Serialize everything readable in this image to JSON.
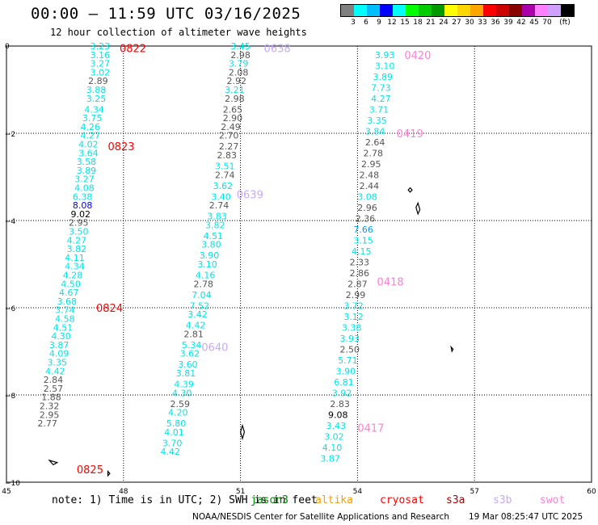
{
  "header": {
    "title": "00:00 – 11:59 UTC 03/16/2025",
    "subtitle": "12 hour collection of altimeter wave heights"
  },
  "legend": {
    "colors": [
      "#808080",
      "#00ffff",
      "#00bfff",
      "#0000ff",
      "#00ffff",
      "#00ff00",
      "#00cc00",
      "#009900",
      "#ffff00",
      "#ffd700",
      "#ffa500",
      "#ff0000",
      "#cc0000",
      "#880000",
      "#aa00aa",
      "#ff80ff",
      "#d0a0ff",
      "#000000"
    ],
    "ticks": [
      "3",
      "6",
      "9",
      "12",
      "15",
      "18",
      "21",
      "24",
      "27",
      "30",
      "33",
      "36",
      "39",
      "42",
      "45",
      "70",
      "(ft)"
    ]
  },
  "axes": {
    "x_ticks": [
      "45",
      "48",
      "51",
      "54",
      "57",
      "60"
    ],
    "y_ticks": [
      "0",
      "−2",
      "−4",
      "−6",
      "−8",
      "−10"
    ]
  },
  "tracks": [
    {
      "time_labels": [
        {
          "text": "0822",
          "lon": 47.9,
          "lat": -0.05,
          "color": "#ff0000"
        },
        {
          "text": "0823",
          "lon": 47.6,
          "lat": -2.3,
          "color": "#ff0000"
        },
        {
          "text": "0824",
          "lon": 47.3,
          "lat": -6.0,
          "color": "#ff0000"
        },
        {
          "text": "0825",
          "lon": 46.8,
          "lat": -9.7,
          "color": "#ff0000"
        }
      ],
      "points": [
        {
          "v": "3.23",
          "lon": 47.4,
          "lat": 0.0,
          "c": "#00e5e5"
        },
        {
          "v": "3.16",
          "lon": 47.4,
          "lat": -0.2,
          "c": "#00e5e5"
        },
        {
          "v": "3.27",
          "lon": 47.4,
          "lat": -0.4,
          "c": "#00e5e5"
        },
        {
          "v": "3.02",
          "lon": 47.4,
          "lat": -0.6,
          "c": "#00e5e5"
        },
        {
          "v": "2.89",
          "lon": 47.35,
          "lat": -0.8,
          "c": "#555555"
        },
        {
          "v": "3.88",
          "lon": 47.3,
          "lat": -1.0,
          "c": "#00e5e5"
        },
        {
          "v": "3.25",
          "lon": 47.3,
          "lat": -1.2,
          "c": "#00e5e5"
        },
        {
          "v": "4.34",
          "lon": 47.25,
          "lat": -1.45,
          "c": "#00e5e5"
        },
        {
          "v": "3.75",
          "lon": 47.2,
          "lat": -1.65,
          "c": "#00e5e5"
        },
        {
          "v": "4.26",
          "lon": 47.15,
          "lat": -1.85,
          "c": "#00e5e5"
        },
        {
          "v": "4.27",
          "lon": 47.15,
          "lat": -2.05,
          "c": "#00e5e5"
        },
        {
          "v": "4.02",
          "lon": 47.1,
          "lat": -2.25,
          "c": "#00e5e5"
        },
        {
          "v": "3.64",
          "lon": 47.1,
          "lat": -2.45,
          "c": "#00e5e5"
        },
        {
          "v": "3.58",
          "lon": 47.05,
          "lat": -2.65,
          "c": "#00e5e5"
        },
        {
          "v": "3.89",
          "lon": 47.05,
          "lat": -2.85,
          "c": "#00e5e5"
        },
        {
          "v": "3.27",
          "lon": 47.0,
          "lat": -3.05,
          "c": "#00e5e5"
        },
        {
          "v": "4.08",
          "lon": 47.0,
          "lat": -3.25,
          "c": "#00e5e5"
        },
        {
          "v": "6.38",
          "lon": 46.95,
          "lat": -3.45,
          "c": "#00e5e5"
        },
        {
          "v": "8.08",
          "lon": 46.95,
          "lat": -3.65,
          "c": "#0000ff"
        },
        {
          "v": "9.02",
          "lon": 46.9,
          "lat": -3.85,
          "c": "#000000"
        },
        {
          "v": "2.95",
          "lon": 46.85,
          "lat": -4.05,
          "c": "#555555"
        },
        {
          "v": "3.50",
          "lon": 46.85,
          "lat": -4.25,
          "c": "#00e5e5"
        },
        {
          "v": "4.27",
          "lon": 46.8,
          "lat": -4.45,
          "c": "#00e5e5"
        },
        {
          "v": "3.82",
          "lon": 46.8,
          "lat": -4.65,
          "c": "#00e5e5"
        },
        {
          "v": "4.11",
          "lon": 46.75,
          "lat": -4.85,
          "c": "#00e5e5"
        },
        {
          "v": "4.34",
          "lon": 46.75,
          "lat": -5.05,
          "c": "#00e5e5"
        },
        {
          "v": "4.28",
          "lon": 46.7,
          "lat": -5.25,
          "c": "#00e5e5"
        },
        {
          "v": "4.50",
          "lon": 46.65,
          "lat": -5.45,
          "c": "#00e5e5"
        },
        {
          "v": "4.67",
          "lon": 46.6,
          "lat": -5.65,
          "c": "#00e5e5"
        },
        {
          "v": "3.68",
          "lon": 46.55,
          "lat": -5.85,
          "c": "#00e5e5"
        },
        {
          "v": "3.74",
          "lon": 46.5,
          "lat": -6.05,
          "c": "#00e5e5"
        },
        {
          "v": "4.58",
          "lon": 46.5,
          "lat": -6.25,
          "c": "#00e5e5"
        },
        {
          "v": "4.51",
          "lon": 46.45,
          "lat": -6.45,
          "c": "#00e5e5"
        },
        {
          "v": "4.30",
          "lon": 46.4,
          "lat": -6.65,
          "c": "#00e5e5"
        },
        {
          "v": "3.87",
          "lon": 46.35,
          "lat": -6.85,
          "c": "#00e5e5"
        },
        {
          "v": "4.09",
          "lon": 46.35,
          "lat": -7.05,
          "c": "#00e5e5"
        },
        {
          "v": "3.35",
          "lon": 46.3,
          "lat": -7.25,
          "c": "#00e5e5"
        },
        {
          "v": "4.42",
          "lon": 46.25,
          "lat": -7.45,
          "c": "#00e5e5"
        },
        {
          "v": "2.84",
          "lon": 46.2,
          "lat": -7.65,
          "c": "#555555"
        },
        {
          "v": "2.57",
          "lon": 46.2,
          "lat": -7.85,
          "c": "#555555"
        },
        {
          "v": "1.88",
          "lon": 46.15,
          "lat": -8.05,
          "c": "#555555"
        },
        {
          "v": "2.32",
          "lon": 46.1,
          "lat": -8.25,
          "c": "#555555"
        },
        {
          "v": "2.95",
          "lon": 46.1,
          "lat": -8.45,
          "c": "#555555"
        },
        {
          "v": "2.77",
          "lon": 46.05,
          "lat": -8.65,
          "c": "#555555"
        }
      ]
    },
    {
      "time_labels": [
        {
          "text": "0638",
          "lon": 51.6,
          "lat": -0.05,
          "color": "#c8a8ff"
        },
        {
          "text": "0639",
          "lon": 50.9,
          "lat": -3.4,
          "color": "#c8a8ff"
        },
        {
          "text": "0640",
          "lon": 50.0,
          "lat": -6.9,
          "color": "#c8a8ff"
        }
      ],
      "points": [
        {
          "v": "3.45",
          "lon": 51.0,
          "lat": 0.0,
          "c": "#00e5e5"
        },
        {
          "v": "2.98",
          "lon": 51.0,
          "lat": -0.2,
          "c": "#555555"
        },
        {
          "v": "3.79",
          "lon": 50.95,
          "lat": -0.4,
          "c": "#00e5e5"
        },
        {
          "v": "2.08",
          "lon": 50.95,
          "lat": -0.6,
          "c": "#555555"
        },
        {
          "v": "2.92",
          "lon": 50.9,
          "lat": -0.8,
          "c": "#555555"
        },
        {
          "v": "3.21",
          "lon": 50.85,
          "lat": -1.0,
          "c": "#00e5e5"
        },
        {
          "v": "2.98",
          "lon": 50.85,
          "lat": -1.2,
          "c": "#555555"
        },
        {
          "v": "2.65",
          "lon": 50.8,
          "lat": -1.45,
          "c": "#555555"
        },
        {
          "v": "2.90",
          "lon": 50.8,
          "lat": -1.65,
          "c": "#555555"
        },
        {
          "v": "2.49",
          "lon": 50.75,
          "lat": -1.85,
          "c": "#555555"
        },
        {
          "v": "2.70",
          "lon": 50.7,
          "lat": -2.05,
          "c": "#555555"
        },
        {
          "v": "2.27",
          "lon": 50.7,
          "lat": -2.3,
          "c": "#555555"
        },
        {
          "v": "2.83",
          "lon": 50.65,
          "lat": -2.5,
          "c": "#555555"
        },
        {
          "v": "3.51",
          "lon": 50.6,
          "lat": -2.75,
          "c": "#00e5e5"
        },
        {
          "v": "2.74",
          "lon": 50.6,
          "lat": -2.95,
          "c": "#555555"
        },
        {
          "v": "3.62",
          "lon": 50.55,
          "lat": -3.2,
          "c": "#00e5e5"
        },
        {
          "v": "3.40",
          "lon": 50.5,
          "lat": -3.45,
          "c": "#00e5e5"
        },
        {
          "v": "2.74",
          "lon": 50.45,
          "lat": -3.65,
          "c": "#555555"
        },
        {
          "v": "3.83",
          "lon": 50.4,
          "lat": -3.9,
          "c": "#00e5e5"
        },
        {
          "v": "3.82",
          "lon": 50.35,
          "lat": -4.1,
          "c": "#00e5e5"
        },
        {
          "v": "4.51",
          "lon": 50.3,
          "lat": -4.35,
          "c": "#00e5e5"
        },
        {
          "v": "3.80",
          "lon": 50.25,
          "lat": -4.55,
          "c": "#00e5e5"
        },
        {
          "v": "3.90",
          "lon": 50.2,
          "lat": -4.8,
          "c": "#00e5e5"
        },
        {
          "v": "3.10",
          "lon": 50.15,
          "lat": -5.0,
          "c": "#00e5e5"
        },
        {
          "v": "4.16",
          "lon": 50.1,
          "lat": -5.25,
          "c": "#00e5e5"
        },
        {
          "v": "2.78",
          "lon": 50.05,
          "lat": -5.45,
          "c": "#555555"
        },
        {
          "v": "7.04",
          "lon": 50.0,
          "lat": -5.7,
          "c": "#00e5e5"
        },
        {
          "v": "7.52",
          "lon": 49.95,
          "lat": -5.95,
          "c": "#00e5e5"
        },
        {
          "v": "3.42",
          "lon": 49.9,
          "lat": -6.15,
          "c": "#00e5e5"
        },
        {
          "v": "4.42",
          "lon": 49.85,
          "lat": -6.4,
          "c": "#00e5e5"
        },
        {
          "v": "2.81",
          "lon": 49.8,
          "lat": -6.6,
          "c": "#555555"
        },
        {
          "v": "5.34",
          "lon": 49.75,
          "lat": -6.85,
          "c": "#00e5e5"
        },
        {
          "v": "3.62",
          "lon": 49.7,
          "lat": -7.05,
          "c": "#00e5e5"
        },
        {
          "v": "3.60",
          "lon": 49.65,
          "lat": -7.3,
          "c": "#00e5e5"
        },
        {
          "v": "3.81",
          "lon": 49.6,
          "lat": -7.5,
          "c": "#00e5e5"
        },
        {
          "v": "4.39",
          "lon": 49.55,
          "lat": -7.75,
          "c": "#00e5e5"
        },
        {
          "v": "4.30",
          "lon": 49.5,
          "lat": -7.95,
          "c": "#00e5e5"
        },
        {
          "v": "2.59",
          "lon": 49.45,
          "lat": -8.2,
          "c": "#555555"
        },
        {
          "v": "4.20",
          "lon": 49.4,
          "lat": -8.4,
          "c": "#00e5e5"
        },
        {
          "v": "5.80",
          "lon": 49.35,
          "lat": -8.65,
          "c": "#00e5e5"
        },
        {
          "v": "4.01",
          "lon": 49.3,
          "lat": -8.85,
          "c": "#00e5e5"
        },
        {
          "v": "3.70",
          "lon": 49.25,
          "lat": -9.1,
          "c": "#00e5e5"
        },
        {
          "v": "4.42",
          "lon": 49.2,
          "lat": -9.3,
          "c": "#00e5e5"
        }
      ]
    },
    {
      "time_labels": [
        {
          "text": "0420",
          "lon": 55.2,
          "lat": -0.2,
          "color": "#ff80d0"
        },
        {
          "text": "0419",
          "lon": 55.0,
          "lat": -2.0,
          "color": "#ff80d0"
        },
        {
          "text": "0418",
          "lon": 54.5,
          "lat": -5.4,
          "color": "#ff80d0"
        },
        {
          "text": "0417",
          "lon": 54.0,
          "lat": -8.75,
          "color": "#ff80d0"
        }
      ],
      "points": [
        {
          "v": "3.93",
          "lon": 54.7,
          "lat": -0.2,
          "c": "#00e5e5"
        },
        {
          "v": "3.10",
          "lon": 54.7,
          "lat": -0.45,
          "c": "#00e5e5"
        },
        {
          "v": "3.89",
          "lon": 54.65,
          "lat": -0.7,
          "c": "#00e5e5"
        },
        {
          "v": "7.73",
          "lon": 54.6,
          "lat": -0.95,
          "c": "#00e5e5"
        },
        {
          "v": "4.27",
          "lon": 54.6,
          "lat": -1.2,
          "c": "#00e5e5"
        },
        {
          "v": "3.71",
          "lon": 54.55,
          "lat": -1.45,
          "c": "#00e5e5"
        },
        {
          "v": "3.35",
          "lon": 54.5,
          "lat": -1.7,
          "c": "#00e5e5"
        },
        {
          "v": "3.84",
          "lon": 54.45,
          "lat": -1.95,
          "c": "#00e5e5"
        },
        {
          "v": "2.64",
          "lon": 54.45,
          "lat": -2.2,
          "c": "#555555"
        },
        {
          "v": "2.78",
          "lon": 54.4,
          "lat": -2.45,
          "c": "#555555"
        },
        {
          "v": "2.95",
          "lon": 54.35,
          "lat": -2.7,
          "c": "#555555"
        },
        {
          "v": "2.48",
          "lon": 54.3,
          "lat": -2.95,
          "c": "#555555"
        },
        {
          "v": "2.44",
          "lon": 54.3,
          "lat": -3.2,
          "c": "#555555"
        },
        {
          "v": "3.08",
          "lon": 54.25,
          "lat": -3.45,
          "c": "#00e5e5"
        },
        {
          "v": "2.96",
          "lon": 54.25,
          "lat": -3.7,
          "c": "#555555"
        },
        {
          "v": "2.36",
          "lon": 54.2,
          "lat": -3.95,
          "c": "#555555"
        },
        {
          "v": "7.66",
          "lon": 54.15,
          "lat": -4.2,
          "c": "#00a0e0"
        },
        {
          "v": "3.15",
          "lon": 54.15,
          "lat": -4.45,
          "c": "#00e5e5"
        },
        {
          "v": "4.15",
          "lon": 54.1,
          "lat": -4.7,
          "c": "#00e5e5"
        },
        {
          "v": "2.33",
          "lon": 54.05,
          "lat": -4.95,
          "c": "#555555"
        },
        {
          "v": "2.86",
          "lon": 54.05,
          "lat": -5.2,
          "c": "#555555"
        },
        {
          "v": "2.87",
          "lon": 54.0,
          "lat": -5.45,
          "c": "#555555"
        },
        {
          "v": "2.99",
          "lon": 53.95,
          "lat": -5.7,
          "c": "#555555"
        },
        {
          "v": "3.72",
          "lon": 53.9,
          "lat": -5.95,
          "c": "#00e5e5"
        },
        {
          "v": "3.12",
          "lon": 53.9,
          "lat": -6.2,
          "c": "#00e5e5"
        },
        {
          "v": "3.38",
          "lon": 53.85,
          "lat": -6.45,
          "c": "#00e5e5"
        },
        {
          "v": "3.93",
          "lon": 53.8,
          "lat": -6.7,
          "c": "#00e5e5"
        },
        {
          "v": "2.50",
          "lon": 53.8,
          "lat": -6.95,
          "c": "#555555"
        },
        {
          "v": "5.71",
          "lon": 53.75,
          "lat": -7.2,
          "c": "#00e5e5"
        },
        {
          "v": "3.90",
          "lon": 53.7,
          "lat": -7.45,
          "c": "#00e5e5"
        },
        {
          "v": "6.81",
          "lon": 53.65,
          "lat": -7.7,
          "c": "#00e5e5"
        },
        {
          "v": "3.92",
          "lon": 53.6,
          "lat": -7.95,
          "c": "#00e5e5"
        },
        {
          "v": "2.83",
          "lon": 53.55,
          "lat": -8.2,
          "c": "#555555"
        },
        {
          "v": "9.08",
          "lon": 53.5,
          "lat": -8.45,
          "c": "#000000"
        },
        {
          "v": "3.43",
          "lon": 53.45,
          "lat": -8.7,
          "c": "#00e5e5"
        },
        {
          "v": "3.02",
          "lon": 53.4,
          "lat": -8.95,
          "c": "#00e5e5"
        },
        {
          "v": "4.10",
          "lon": 53.35,
          "lat": -9.2,
          "c": "#00e5e5"
        },
        {
          "v": "3.87",
          "lon": 53.3,
          "lat": -9.45,
          "c": "#00e5e5"
        }
      ]
    }
  ],
  "footer": {
    "note": "note: 1) Time is in UTC; 2) SWH is in feet",
    "satellites": [
      {
        "name": "jason3",
        "color": "#008800"
      },
      {
        "name": "altika",
        "color": "#ff9900"
      },
      {
        "name": "cryosat",
        "color": "#ff0000"
      },
      {
        "name": "s3a",
        "color": "#aa0000"
      },
      {
        "name": "s3b",
        "color": "#c8a8ff"
      },
      {
        "name": "swot",
        "color": "#ff80d0"
      }
    ],
    "credit": "NOAA/NESDIS Center for Satellite Applications and Research",
    "stamp": "19 Mar 08:25:47 UTC 2025"
  }
}
